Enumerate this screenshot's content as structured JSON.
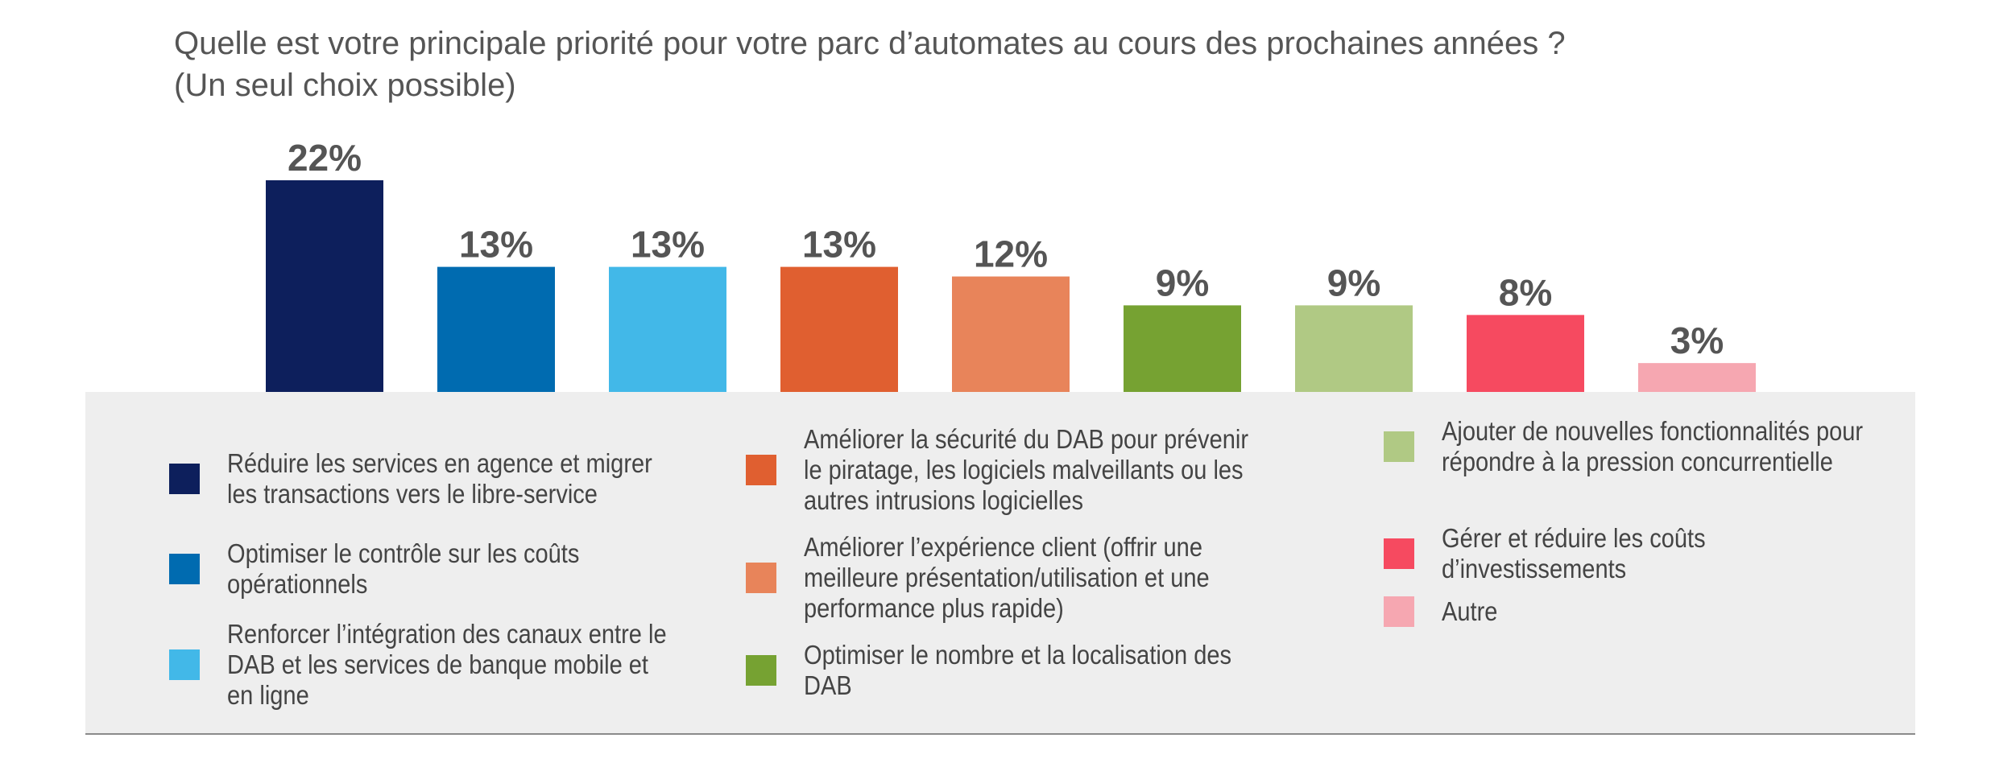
{
  "title": {
    "line1": "Quelle est votre principale priorité pour votre parc d’automates au cours des prochaines années ?",
    "line2": "(Un seul choix possible)"
  },
  "chart_data": {
    "type": "bar",
    "ylim": [
      0,
      25
    ],
    "grid": false,
    "legend_placement": "bottom",
    "categories": [
      "Réduire les services en agence et migrer les transactions vers le libre-service",
      "Optimiser le contrôle sur les coûts opérationnels",
      "Renforcer l’intégration des canaux entre le DAB et les services de banque mobile et en ligne",
      "Améliorer la sécurité du DAB pour prévenir le piratage, les logiciels malveillants ou les autres intrusions logicielles",
      "Améliorer l’expérience client (offrir une meilleure présentation/utilisation et une performance plus rapide)",
      "Optimiser le nombre et la localisation des DAB",
      "Ajouter de nouvelles fonctionnalités pour répondre à la pression concurrentielle",
      "Gérer et réduire les coûts d’investissements",
      "Autre"
    ],
    "values": [
      22,
      13,
      13,
      13,
      12,
      9,
      9,
      8,
      3
    ],
    "value_labels": [
      "22%",
      "13%",
      "13%",
      "13%",
      "12%",
      "9%",
      "9%",
      "8%",
      "3%"
    ],
    "colors": [
      "#0d1f5c",
      "#006bb0",
      "#42b8e8",
      "#e05f30",
      "#e8845a",
      "#76a232",
      "#b0c984",
      "#f64a60",
      "#f6a7b1"
    ]
  },
  "legend": [
    {
      "label": "Réduire les services en agence et migrer les transactions vers le libre-service",
      "color": "#0d1f5c"
    },
    {
      "label": "Optimiser le contrôle sur les coûts opérationnels",
      "color": "#006bb0"
    },
    {
      "label": "Renforcer l’intégration des canaux entre le DAB et les services de banque mobile et en ligne",
      "color": "#42b8e8"
    },
    {
      "label": "Améliorer la sécurité du DAB pour prévenir le piratage, les logiciels malveillants ou les autres intrusions logicielles",
      "color": "#e05f30"
    },
    {
      "label": "Améliorer l’expérience client (offrir une meilleure présentation/utilisation et une performance plus rapide)",
      "color": "#e8845a"
    },
    {
      "label": "Optimiser le nombre et la localisation des DAB",
      "color": "#76a232"
    },
    {
      "label": "Ajouter de nouvelles fonctionnalités pour répondre à la pression concurrentielle",
      "color": "#b0c984"
    },
    {
      "label": "Gérer et réduire les coûts d’investissements",
      "color": "#f64a60"
    },
    {
      "label": "Autre",
      "color": "#f6a7b1"
    }
  ]
}
